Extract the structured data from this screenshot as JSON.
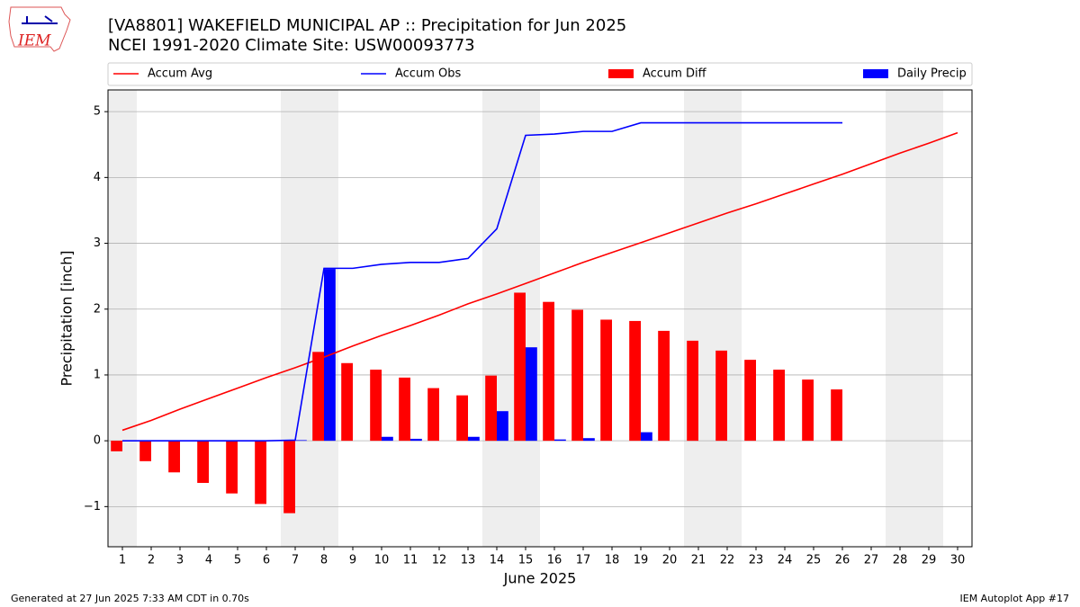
{
  "chart_data": {
    "type": "combo",
    "logo_text": "IEM",
    "title": "[VA8801] WAKEFIELD MUNICIPAL AP :: Precipitation for Jun 2025",
    "subtitle": "NCEI 1991-2020 Climate Site: USW00093773",
    "x_label": "June 2025",
    "y_label": "Precipitation [inch]",
    "x": [
      1,
      2,
      3,
      4,
      5,
      6,
      7,
      8,
      9,
      10,
      11,
      12,
      13,
      14,
      15,
      16,
      17,
      18,
      19,
      20,
      21,
      22,
      23,
      24,
      25,
      26,
      27,
      28,
      29,
      30
    ],
    "xlim": [
      0.5,
      30.5
    ],
    "xticks": [
      1,
      2,
      3,
      4,
      5,
      6,
      7,
      8,
      9,
      10,
      11,
      12,
      13,
      14,
      15,
      16,
      17,
      18,
      19,
      20,
      21,
      22,
      23,
      24,
      25,
      26,
      27,
      28,
      29,
      30
    ],
    "ylim": [
      -1.61,
      5.33
    ],
    "yticks": [
      {
        "value": -1,
        "label": "−1"
      },
      0,
      1,
      2,
      3,
      4,
      5
    ],
    "grid": true,
    "shaded_spans": [
      [
        0.5,
        1.5
      ],
      [
        6.5,
        8.5
      ],
      [
        13.5,
        15.5
      ],
      [
        20.5,
        22.5
      ],
      [
        27.5,
        29.5
      ]
    ],
    "shade_color": "#eeeeee",
    "series": [
      {
        "name": "Accum Avg",
        "type": "line",
        "color": "#ff0000",
        "values": [
          0.16,
          0.31,
          0.48,
          0.64,
          0.8,
          0.96,
          1.11,
          1.27,
          1.44,
          1.6,
          1.75,
          1.91,
          2.08,
          2.23,
          2.39,
          2.55,
          2.71,
          2.86,
          3.01,
          3.16,
          3.31,
          3.46,
          3.6,
          3.75,
          3.9,
          4.05,
          4.21,
          4.37,
          4.52,
          4.68
        ]
      },
      {
        "name": "Accum Obs",
        "type": "line",
        "color": "#0000ff",
        "values": [
          0,
          0,
          0,
          0,
          0,
          0,
          0.01,
          2.62,
          2.62,
          2.68,
          2.71,
          2.71,
          2.77,
          3.22,
          4.64,
          4.66,
          4.7,
          4.7,
          4.83,
          4.83,
          4.83,
          4.83,
          4.83,
          4.83,
          4.83,
          4.83,
          null,
          null,
          null,
          null
        ]
      },
      {
        "name": "Accum Diff",
        "type": "bar",
        "color": "#ff0000",
        "offset": -1,
        "values": [
          -0.16,
          -0.31,
          -0.48,
          -0.64,
          -0.8,
          -0.96,
          -1.1,
          1.35,
          1.18,
          1.08,
          0.96,
          0.8,
          0.69,
          0.99,
          2.25,
          2.11,
          1.99,
          1.84,
          1.82,
          1.67,
          1.52,
          1.37,
          1.23,
          1.08,
          0.93,
          0.78,
          null,
          null,
          null,
          null
        ]
      },
      {
        "name": "Daily Precip",
        "type": "bar",
        "color": "#0000ff",
        "offset": 0,
        "values": [
          0,
          0,
          0,
          0,
          0,
          0,
          0.01,
          2.61,
          0,
          0.06,
          0.03,
          0,
          0.06,
          0.45,
          1.42,
          0.02,
          0.04,
          0,
          0.13,
          0,
          0,
          0,
          0,
          0,
          0,
          0,
          null,
          null,
          null,
          null
        ]
      }
    ],
    "footer_left": "Generated at 27 Jun 2025 7:33 AM CDT in 0.70s",
    "footer_right": "IEM Autoplot App #17"
  }
}
